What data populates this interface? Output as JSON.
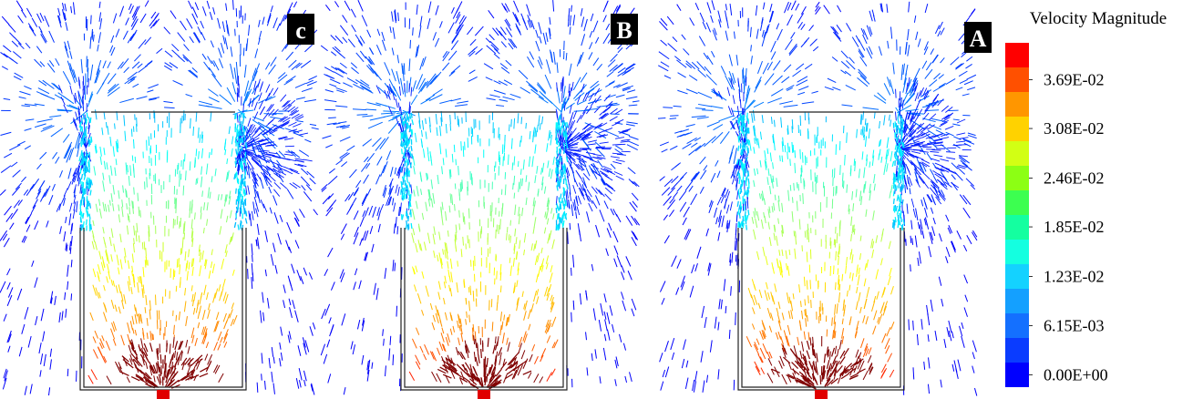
{
  "panels": [
    {
      "label": "c"
    },
    {
      "label": "B"
    },
    {
      "label": "A"
    }
  ],
  "colorbar": {
    "title": "Velocity Magnitude",
    "ticks": [
      {
        "value": 0,
        "label": "0.00E+00"
      },
      {
        "value": 0.00615,
        "label": "6.15E-03"
      },
      {
        "value": 0.0123,
        "label": "1.23E-02"
      },
      {
        "value": 0.0185,
        "label": "1.85E-02"
      },
      {
        "value": 0.0246,
        "label": "2.46E-02"
      },
      {
        "value": 0.0308,
        "label": "3.08E-02"
      },
      {
        "value": 0.0369,
        "label": "3.69E-02"
      }
    ]
  }
}
